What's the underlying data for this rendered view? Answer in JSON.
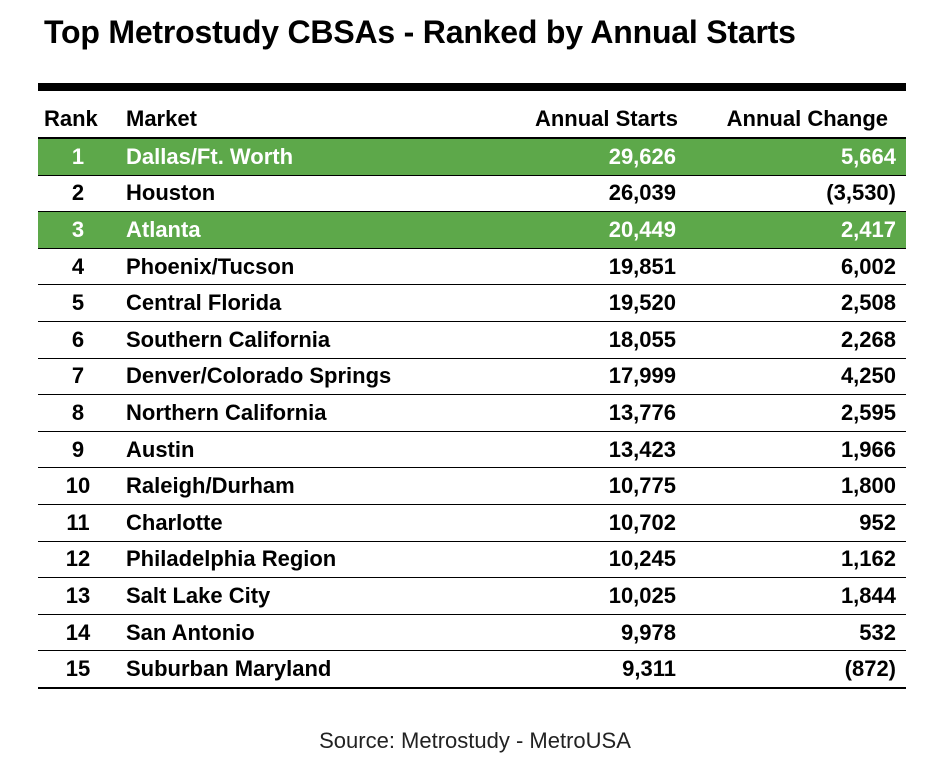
{
  "title": "Top Metrostudy CBSAs - Ranked by Annual Starts",
  "source": "Source: Metrostudy - MetroUSA",
  "colors": {
    "highlight": "#5da84a",
    "highlight_text": "#ffffff"
  },
  "chart_data": {
    "type": "table",
    "title": "Top Metrostudy CBSAs - Ranked by Annual Starts",
    "columns": [
      "Rank",
      "Market",
      "Annual Starts",
      "Annual Change"
    ],
    "rows": [
      {
        "rank": "1",
        "market": "Dallas/Ft. Worth",
        "starts": "29,626",
        "change": "5,664",
        "highlight": true
      },
      {
        "rank": "2",
        "market": "Houston",
        "starts": "26,039",
        "change": "(3,530)",
        "highlight": false
      },
      {
        "rank": "3",
        "market": "Atlanta",
        "starts": "20,449",
        "change": "2,417",
        "highlight": true
      },
      {
        "rank": "4",
        "market": "Phoenix/Tucson",
        "starts": "19,851",
        "change": "6,002",
        "highlight": false
      },
      {
        "rank": "5",
        "market": "Central Florida",
        "starts": "19,520",
        "change": "2,508",
        "highlight": false
      },
      {
        "rank": "6",
        "market": "Southern California",
        "starts": "18,055",
        "change": "2,268",
        "highlight": false
      },
      {
        "rank": "7",
        "market": "Denver/Colorado Springs",
        "starts": "17,999",
        "change": "4,250",
        "highlight": false
      },
      {
        "rank": "8",
        "market": "Northern California",
        "starts": "13,776",
        "change": "2,595",
        "highlight": false
      },
      {
        "rank": "9",
        "market": "Austin",
        "starts": "13,423",
        "change": "1,966",
        "highlight": false
      },
      {
        "rank": "10",
        "market": "Raleigh/Durham",
        "starts": "10,775",
        "change": "1,800",
        "highlight": false
      },
      {
        "rank": "11",
        "market": "Charlotte",
        "starts": "10,702",
        "change": "952",
        "highlight": false
      },
      {
        "rank": "12",
        "market": "Philadelphia Region",
        "starts": "10,245",
        "change": "1,162",
        "highlight": false
      },
      {
        "rank": "13",
        "market": "Salt Lake City",
        "starts": "10,025",
        "change": "1,844",
        "highlight": false
      },
      {
        "rank": "14",
        "market": "San Antonio",
        "starts": "9,978",
        "change": "532",
        "highlight": false
      },
      {
        "rank": "15",
        "market": "Suburban Maryland",
        "starts": "9,311",
        "change": "(872)",
        "highlight": false
      }
    ]
  }
}
